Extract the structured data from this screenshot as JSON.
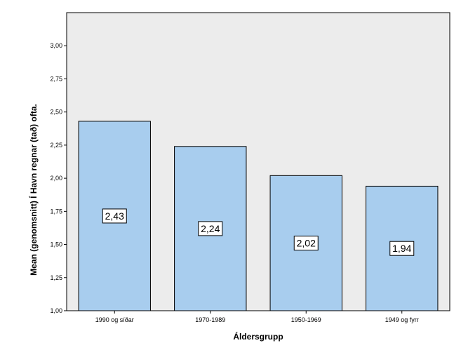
{
  "chart_data": {
    "type": "bar",
    "categories": [
      "1990 og síðar",
      "1970-1989",
      "1950-1969",
      "1949 og fyrr"
    ],
    "values": [
      2.43,
      2.24,
      2.02,
      1.94
    ],
    "data_labels": [
      "2,43",
      "2,24",
      "2,02",
      "1,94"
    ],
    "xlabel": "Áldersgrupp",
    "ylabel": "Mean (genomsnitt) Í Havn regnar (tað) ofta.",
    "ylim": [
      1.0,
      3.25
    ],
    "yticks": [
      1.0,
      1.25,
      1.5,
      1.75,
      2.0,
      2.25,
      2.5,
      2.75,
      3.0
    ],
    "ytick_labels": [
      "1,00",
      "1,25",
      "1,50",
      "1,75",
      "2,00",
      "2,25",
      "2,50",
      "2,75",
      "3,00"
    ],
    "grid": false,
    "colors": {
      "bar_fill": "#a8cdee",
      "bar_stroke": "#000000",
      "plot_background": "#ececec"
    }
  }
}
